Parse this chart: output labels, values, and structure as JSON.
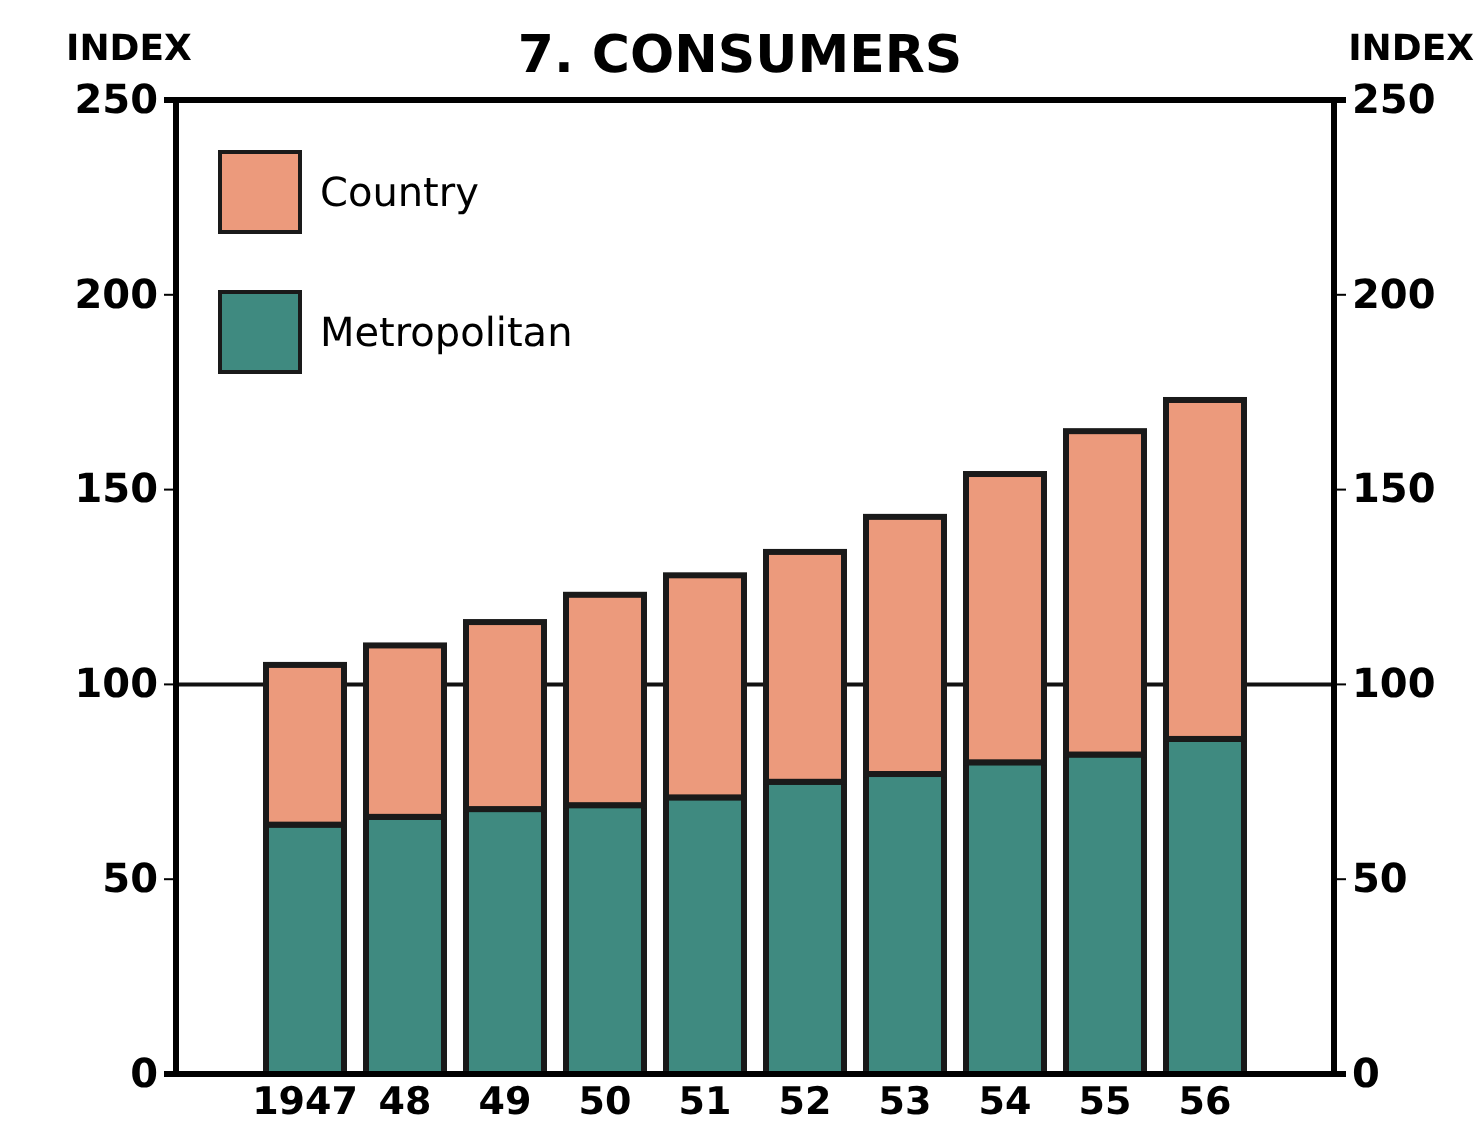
{
  "chart_data": {
    "type": "bar",
    "title": "7. CONSUMERS",
    "ylabel": "INDEX",
    "y2label": "INDEX",
    "categories": [
      "1947",
      "48",
      "49",
      "50",
      "51",
      "52",
      "53",
      "54",
      "55",
      "56"
    ],
    "stacked": true,
    "series": [
      {
        "name": "Metropolitan",
        "color": "#3f8a80",
        "values": [
          64,
          66,
          68,
          69,
          71,
          75,
          77,
          80,
          82,
          86
        ]
      },
      {
        "name": "Country",
        "color": "#ec9a7c",
        "values": [
          41,
          44,
          48,
          54,
          57,
          59,
          66,
          74,
          83,
          87
        ]
      }
    ],
    "ylim": [
      0,
      250
    ],
    "yticks": [
      0,
      50,
      100,
      150,
      200,
      250
    ],
    "y2lim": [
      0,
      250
    ],
    "y2ticks": [
      0,
      50,
      100,
      150,
      200,
      250
    ],
    "ref_lines": [
      {
        "axis": "y",
        "value": 100,
        "color": "#111111"
      }
    ],
    "grid": false,
    "legend": "top left"
  }
}
